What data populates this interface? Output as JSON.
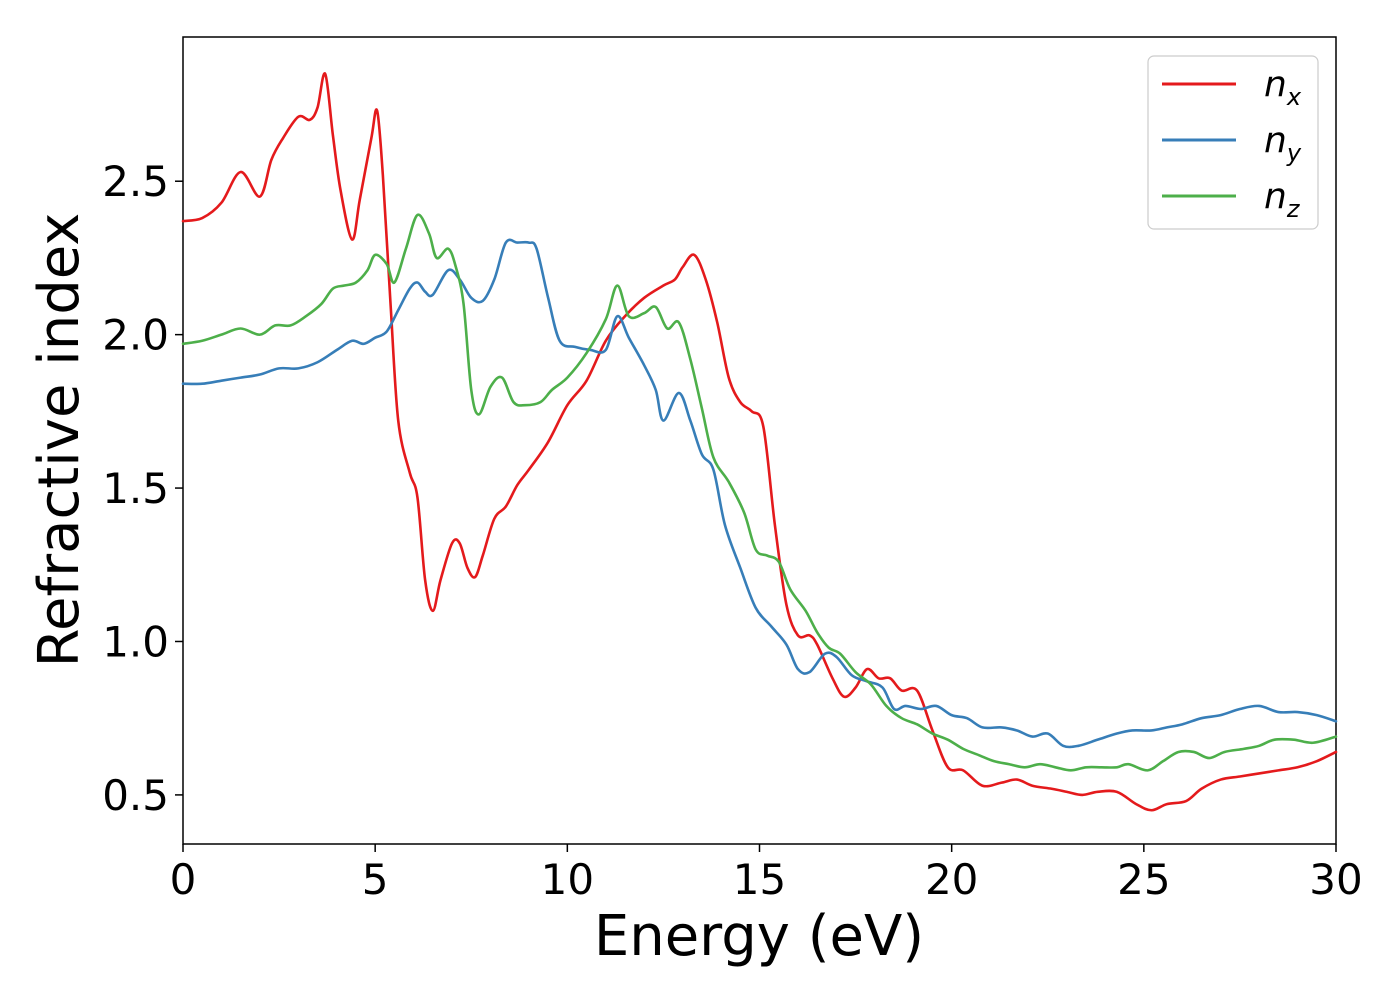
{
  "chart_data": {
    "type": "line",
    "title": "",
    "xlabel": "Energy (eV)",
    "ylabel": "Refractive index",
    "xlim": [
      0,
      30
    ],
    "ylim": [
      0.34,
      2.97
    ],
    "xticks": [
      0,
      5,
      10,
      15,
      20,
      25,
      30
    ],
    "yticks": [
      0.5,
      1.0,
      1.5,
      2.0,
      2.5
    ],
    "xtick_labels": [
      "0",
      "5",
      "10",
      "15",
      "20",
      "25",
      "30"
    ],
    "ytick_labels": [
      "0.5",
      "1.0",
      "1.5",
      "2.0",
      "2.5"
    ],
    "grid": false,
    "legend_position": "top-right",
    "series": [
      {
        "name": "n",
        "subscript": "x",
        "color": "#e41a1c",
        "points": [
          [
            0,
            2.37
          ],
          [
            0.5,
            2.38
          ],
          [
            1.0,
            2.43
          ],
          [
            1.5,
            2.53
          ],
          [
            2.0,
            2.45
          ],
          [
            2.3,
            2.57
          ],
          [
            2.6,
            2.64
          ],
          [
            3.0,
            2.71
          ],
          [
            3.3,
            2.7
          ],
          [
            3.5,
            2.74
          ],
          [
            3.7,
            2.85
          ],
          [
            3.9,
            2.65
          ],
          [
            4.1,
            2.47
          ],
          [
            4.4,
            2.31
          ],
          [
            4.6,
            2.44
          ],
          [
            4.9,
            2.64
          ],
          [
            5.05,
            2.73
          ],
          [
            5.2,
            2.52
          ],
          [
            5.4,
            2.1
          ],
          [
            5.6,
            1.72
          ],
          [
            5.9,
            1.55
          ],
          [
            6.1,
            1.47
          ],
          [
            6.3,
            1.2
          ],
          [
            6.5,
            1.1
          ],
          [
            6.7,
            1.2
          ],
          [
            7.0,
            1.32
          ],
          [
            7.2,
            1.32
          ],
          [
            7.4,
            1.24
          ],
          [
            7.6,
            1.21
          ],
          [
            7.8,
            1.28
          ],
          [
            8.1,
            1.4
          ],
          [
            8.4,
            1.44
          ],
          [
            8.7,
            1.51
          ],
          [
            9.0,
            1.56
          ],
          [
            9.5,
            1.65
          ],
          [
            10.0,
            1.77
          ],
          [
            10.5,
            1.85
          ],
          [
            11.0,
            1.98
          ],
          [
            11.5,
            2.06
          ],
          [
            12.0,
            2.12
          ],
          [
            12.5,
            2.16
          ],
          [
            12.8,
            2.18
          ],
          [
            13.0,
            2.22
          ],
          [
            13.3,
            2.26
          ],
          [
            13.6,
            2.18
          ],
          [
            13.9,
            2.04
          ],
          [
            14.2,
            1.86
          ],
          [
            14.5,
            1.78
          ],
          [
            14.8,
            1.75
          ],
          [
            15.1,
            1.7
          ],
          [
            15.4,
            1.38
          ],
          [
            15.7,
            1.12
          ],
          [
            16.0,
            1.02
          ],
          [
            16.3,
            1.02
          ],
          [
            16.5,
            0.99
          ],
          [
            16.9,
            0.88
          ],
          [
            17.2,
            0.82
          ],
          [
            17.5,
            0.85
          ],
          [
            17.8,
            0.91
          ],
          [
            18.1,
            0.88
          ],
          [
            18.4,
            0.88
          ],
          [
            18.7,
            0.84
          ],
          [
            19.1,
            0.84
          ],
          [
            19.5,
            0.71
          ],
          [
            19.9,
            0.59
          ],
          [
            20.3,
            0.58
          ],
          [
            20.8,
            0.53
          ],
          [
            21.3,
            0.54
          ],
          [
            21.7,
            0.55
          ],
          [
            22.1,
            0.53
          ],
          [
            22.6,
            0.52
          ],
          [
            23.0,
            0.51
          ],
          [
            23.4,
            0.5
          ],
          [
            23.8,
            0.51
          ],
          [
            24.3,
            0.51
          ],
          [
            24.8,
            0.47
          ],
          [
            25.2,
            0.45
          ],
          [
            25.6,
            0.47
          ],
          [
            26.1,
            0.48
          ],
          [
            26.5,
            0.52
          ],
          [
            27.0,
            0.55
          ],
          [
            27.5,
            0.56
          ],
          [
            28.0,
            0.57
          ],
          [
            28.5,
            0.58
          ],
          [
            29.0,
            0.59
          ],
          [
            29.5,
            0.61
          ],
          [
            30.0,
            0.64
          ]
        ]
      },
      {
        "name": "n",
        "subscript": "y",
        "color": "#377eb8",
        "points": [
          [
            0,
            1.84
          ],
          [
            0.5,
            1.84
          ],
          [
            1.0,
            1.85
          ],
          [
            1.5,
            1.86
          ],
          [
            2.0,
            1.87
          ],
          [
            2.5,
            1.89
          ],
          [
            3.0,
            1.89
          ],
          [
            3.5,
            1.91
          ],
          [
            4.0,
            1.95
          ],
          [
            4.4,
            1.98
          ],
          [
            4.7,
            1.97
          ],
          [
            5.0,
            1.99
          ],
          [
            5.3,
            2.01
          ],
          [
            5.6,
            2.08
          ],
          [
            5.9,
            2.15
          ],
          [
            6.1,
            2.17
          ],
          [
            6.3,
            2.14
          ],
          [
            6.5,
            2.13
          ],
          [
            6.9,
            2.21
          ],
          [
            7.2,
            2.18
          ],
          [
            7.5,
            2.12
          ],
          [
            7.8,
            2.11
          ],
          [
            8.1,
            2.18
          ],
          [
            8.4,
            2.3
          ],
          [
            8.7,
            2.3
          ],
          [
            9.0,
            2.3
          ],
          [
            9.2,
            2.28
          ],
          [
            9.5,
            2.12
          ],
          [
            9.8,
            1.98
          ],
          [
            10.2,
            1.96
          ],
          [
            10.6,
            1.95
          ],
          [
            11.0,
            1.95
          ],
          [
            11.3,
            2.06
          ],
          [
            11.6,
            1.99
          ],
          [
            12.0,
            1.9
          ],
          [
            12.3,
            1.82
          ],
          [
            12.5,
            1.72
          ],
          [
            12.9,
            1.81
          ],
          [
            13.2,
            1.72
          ],
          [
            13.5,
            1.61
          ],
          [
            13.8,
            1.56
          ],
          [
            14.1,
            1.38
          ],
          [
            14.5,
            1.24
          ],
          [
            14.9,
            1.11
          ],
          [
            15.3,
            1.05
          ],
          [
            15.7,
            0.99
          ],
          [
            16.0,
            0.91
          ],
          [
            16.3,
            0.9
          ],
          [
            16.7,
            0.96
          ],
          [
            17.0,
            0.95
          ],
          [
            17.4,
            0.89
          ],
          [
            17.8,
            0.87
          ],
          [
            18.2,
            0.85
          ],
          [
            18.5,
            0.78
          ],
          [
            18.8,
            0.79
          ],
          [
            19.2,
            0.78
          ],
          [
            19.6,
            0.79
          ],
          [
            20.0,
            0.76
          ],
          [
            20.4,
            0.75
          ],
          [
            20.8,
            0.72
          ],
          [
            21.3,
            0.72
          ],
          [
            21.7,
            0.71
          ],
          [
            22.1,
            0.69
          ],
          [
            22.5,
            0.7
          ],
          [
            22.9,
            0.66
          ],
          [
            23.3,
            0.66
          ],
          [
            23.8,
            0.68
          ],
          [
            24.3,
            0.7
          ],
          [
            24.7,
            0.71
          ],
          [
            25.2,
            0.71
          ],
          [
            25.6,
            0.72
          ],
          [
            26.0,
            0.73
          ],
          [
            26.5,
            0.75
          ],
          [
            27.0,
            0.76
          ],
          [
            27.5,
            0.78
          ],
          [
            28.0,
            0.79
          ],
          [
            28.5,
            0.77
          ],
          [
            29.0,
            0.77
          ],
          [
            29.5,
            0.76
          ],
          [
            30.0,
            0.74
          ]
        ]
      },
      {
        "name": "n",
        "subscript": "z",
        "color": "#4daf4a",
        "points": [
          [
            0,
            1.97
          ],
          [
            0.5,
            1.98
          ],
          [
            1.0,
            2.0
          ],
          [
            1.5,
            2.02
          ],
          [
            2.0,
            2.0
          ],
          [
            2.4,
            2.03
          ],
          [
            2.8,
            2.03
          ],
          [
            3.2,
            2.06
          ],
          [
            3.6,
            2.1
          ],
          [
            3.9,
            2.15
          ],
          [
            4.2,
            2.16
          ],
          [
            4.5,
            2.17
          ],
          [
            4.8,
            2.21
          ],
          [
            5.0,
            2.26
          ],
          [
            5.3,
            2.23
          ],
          [
            5.5,
            2.17
          ],
          [
            5.8,
            2.28
          ],
          [
            6.1,
            2.39
          ],
          [
            6.4,
            2.33
          ],
          [
            6.6,
            2.25
          ],
          [
            6.9,
            2.28
          ],
          [
            7.1,
            2.22
          ],
          [
            7.3,
            2.1
          ],
          [
            7.5,
            1.82
          ],
          [
            7.7,
            1.74
          ],
          [
            8.0,
            1.83
          ],
          [
            8.3,
            1.86
          ],
          [
            8.6,
            1.78
          ],
          [
            8.9,
            1.77
          ],
          [
            9.3,
            1.78
          ],
          [
            9.6,
            1.82
          ],
          [
            10.0,
            1.86
          ],
          [
            10.5,
            1.94
          ],
          [
            11.0,
            2.05
          ],
          [
            11.3,
            2.16
          ],
          [
            11.6,
            2.06
          ],
          [
            12.0,
            2.07
          ],
          [
            12.3,
            2.09
          ],
          [
            12.6,
            2.02
          ],
          [
            12.9,
            2.04
          ],
          [
            13.2,
            1.92
          ],
          [
            13.5,
            1.76
          ],
          [
            13.8,
            1.6
          ],
          [
            14.2,
            1.52
          ],
          [
            14.6,
            1.42
          ],
          [
            14.9,
            1.3
          ],
          [
            15.2,
            1.28
          ],
          [
            15.5,
            1.26
          ],
          [
            15.8,
            1.17
          ],
          [
            16.2,
            1.1
          ],
          [
            16.5,
            1.03
          ],
          [
            16.8,
            0.98
          ],
          [
            17.1,
            0.96
          ],
          [
            17.5,
            0.9
          ],
          [
            17.9,
            0.86
          ],
          [
            18.3,
            0.79
          ],
          [
            18.7,
            0.75
          ],
          [
            19.1,
            0.73
          ],
          [
            19.5,
            0.7
          ],
          [
            19.9,
            0.68
          ],
          [
            20.3,
            0.65
          ],
          [
            20.7,
            0.63
          ],
          [
            21.1,
            0.61
          ],
          [
            21.5,
            0.6
          ],
          [
            21.9,
            0.59
          ],
          [
            22.3,
            0.6
          ],
          [
            22.7,
            0.59
          ],
          [
            23.1,
            0.58
          ],
          [
            23.5,
            0.59
          ],
          [
            23.9,
            0.59
          ],
          [
            24.3,
            0.59
          ],
          [
            24.6,
            0.6
          ],
          [
            25.1,
            0.58
          ],
          [
            25.5,
            0.61
          ],
          [
            25.9,
            0.64
          ],
          [
            26.3,
            0.64
          ],
          [
            26.7,
            0.62
          ],
          [
            27.1,
            0.64
          ],
          [
            27.6,
            0.65
          ],
          [
            28.0,
            0.66
          ],
          [
            28.4,
            0.68
          ],
          [
            28.9,
            0.68
          ],
          [
            29.4,
            0.67
          ],
          [
            30.0,
            0.69
          ]
        ]
      }
    ]
  }
}
